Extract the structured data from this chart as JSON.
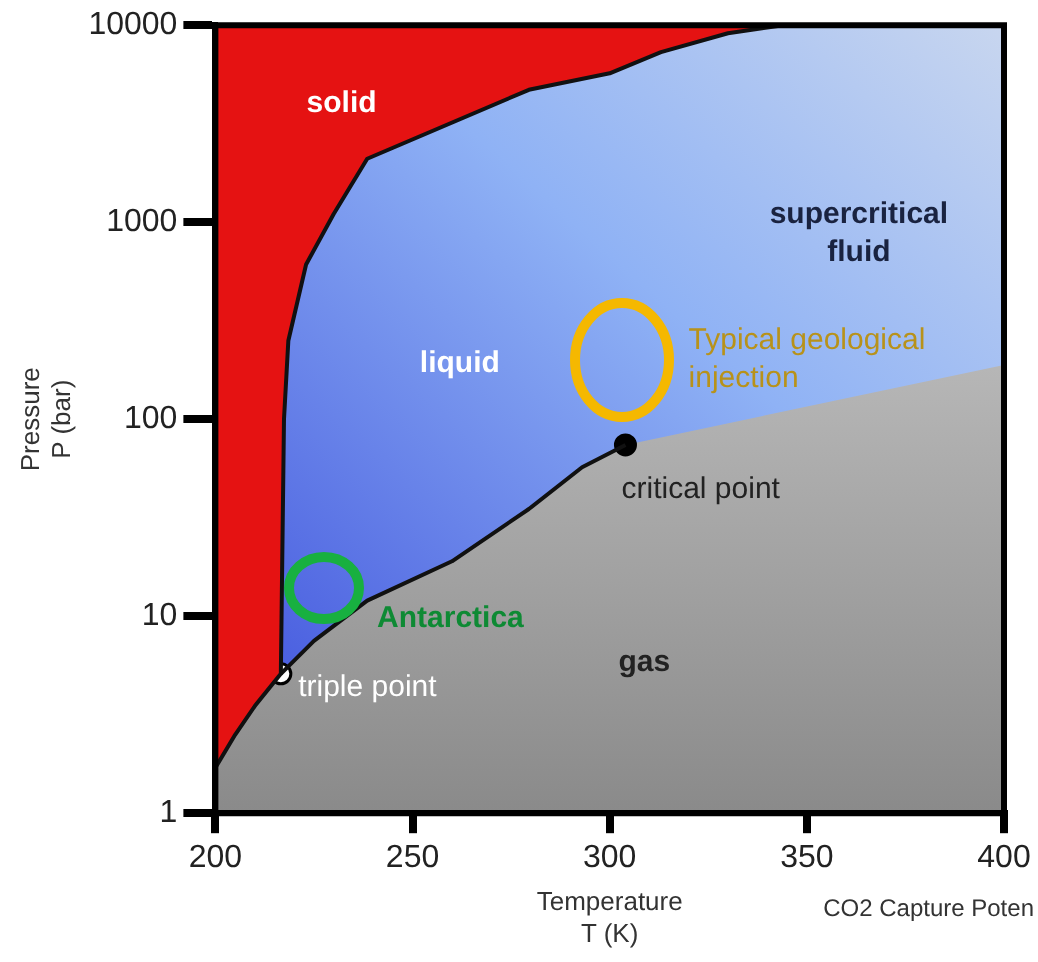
{
  "chart_data": {
    "type": "line",
    "xlabel": "Temperature\nT (K)",
    "ylabel": "Pressure\nP (bar)",
    "xlim": [
      200,
      400
    ],
    "xticks": [
      200,
      250,
      300,
      350,
      400
    ],
    "ylim": [
      1,
      10000
    ],
    "yticks": [
      1,
      10,
      100,
      1000,
      10000
    ],
    "log": "y",
    "grid": false,
    "legend": false,
    "series": [
      {
        "type": "area",
        "color": "#e51212",
        "x": [
          200,
          200,
          205,
          210,
          216.6,
          217.4,
          218.5,
          223,
          230,
          238.5,
          279.5,
          300,
          313,
          330,
          344
        ],
        "values": [
          10000,
          1.7,
          2.5,
          3.5,
          5.1,
          100,
          250,
          610,
          1100,
          2100,
          4700,
          5700,
          7300,
          9100,
          10000
        ]
      },
      {
        "color": "#111111",
        "x": [
          216.6,
          225,
          238.5,
          260,
          279.5,
          293,
          304
        ],
        "values": [
          5.1,
          7.5,
          12,
          19,
          35,
          57,
          74
        ]
      },
      {
        "type": "scatter",
        "color": "#ffffff",
        "x": [
          216.6
        ],
        "values": [
          5.1
        ]
      },
      {
        "type": "scatter",
        "color": "#000000",
        "x": [
          304
        ],
        "values": [
          74
        ]
      }
    ],
    "annotations": [
      "solid",
      "supercritical\nfluid",
      "liquid",
      "Typical geological\ninjection",
      "critical point",
      "Antarctica",
      "gas",
      "triple point",
      "CO2 Capture Poten"
    ]
  }
}
